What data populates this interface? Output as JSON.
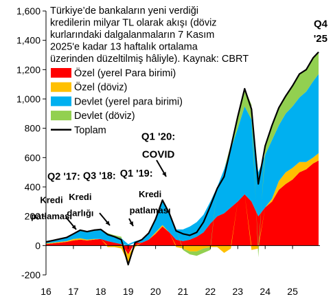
{
  "chart_data": {
    "type": "area",
    "title_lines": [
      "Türkiye’de bankaların yeni verdiği",
      "kredilerin milyar TL olarak akışı (döviz",
      "kurlarındaki dalgalanmaların 7 Kasım",
      "2025'e kadar 13 haftalık ortalama",
      "üzerinden düzeltilmiş hâliyle).  Kaynak: CBRT"
    ],
    "xlabel": "",
    "ylabel": "",
    "xlim": [
      16,
      26
    ],
    "ylim": [
      -200,
      1600
    ],
    "x_ticks": [
      16,
      17,
      18,
      19,
      20,
      21,
      22,
      23,
      24,
      25
    ],
    "x_tick_labels": [
      "16",
      "17",
      "18",
      "19",
      "20",
      "21",
      "22",
      "23",
      "24",
      "25"
    ],
    "y_ticks": [
      -200,
      0,
      200,
      400,
      600,
      800,
      1000,
      1200,
      1400,
      1600
    ],
    "y_tick_labels": [
      "-200",
      "0",
      "200",
      "400",
      "600",
      "800",
      "1,000",
      "1,200",
      "1,400",
      "1,600"
    ],
    "grid": false,
    "legend_position": "top-left",
    "x": [
      16.0,
      16.25,
      16.5,
      16.75,
      17.0,
      17.25,
      17.5,
      17.75,
      18.0,
      18.25,
      18.5,
      18.75,
      19.0,
      19.25,
      19.5,
      19.75,
      20.0,
      20.25,
      20.5,
      20.75,
      21.0,
      21.25,
      21.5,
      21.75,
      22.0,
      22.25,
      22.5,
      22.75,
      23.0,
      23.25,
      23.5,
      23.75,
      24.0,
      24.25,
      24.5,
      24.75,
      25.0,
      25.25,
      25.5,
      25.75,
      25.95
    ],
    "series": [
      {
        "name": "Özel (yerel Para birimi)",
        "color": "#ff0000",
        "values": [
          10,
          15,
          20,
          25,
          35,
          40,
          35,
          40,
          45,
          30,
          20,
          10,
          -60,
          20,
          20,
          40,
          80,
          130,
          90,
          40,
          30,
          40,
          60,
          90,
          150,
          200,
          220,
          260,
          300,
          350,
          300,
          200,
          260,
          300,
          380,
          420,
          450,
          500,
          520,
          560,
          580
        ]
      },
      {
        "name": "Özel (döviz)",
        "color": "#ffc000",
        "values": [
          5,
          5,
          5,
          5,
          10,
          10,
          5,
          5,
          0,
          -10,
          -10,
          -20,
          -60,
          -10,
          0,
          0,
          10,
          10,
          0,
          -10,
          -20,
          -40,
          -40,
          -20,
          -10,
          -10,
          -50,
          -20,
          0,
          0,
          -30,
          -20,
          0,
          20,
          60,
          80,
          80,
          70,
          50,
          40,
          50
        ]
      },
      {
        "name": "Devlet (yerel para birimi)",
        "color": "#00b0f0",
        "values": [
          10,
          15,
          20,
          25,
          35,
          50,
          50,
          55,
          60,
          50,
          40,
          40,
          10,
          10,
          20,
          40,
          80,
          160,
          120,
          70,
          80,
          90,
          100,
          120,
          150,
          200,
          300,
          400,
          500,
          600,
          560,
          300,
          360,
          400,
          380,
          400,
          420,
          440,
          480,
          520,
          540
        ]
      },
      {
        "name": "Devlet (döviz)",
        "color": "#92d050",
        "values": [
          0,
          0,
          0,
          0,
          0,
          5,
          5,
          5,
          5,
          5,
          10,
          10,
          -20,
          0,
          0,
          5,
          10,
          10,
          10,
          0,
          -10,
          -20,
          -30,
          -30,
          -20,
          0,
          0,
          30,
          80,
          120,
          100,
          -60,
          60,
          100,
          120,
          120,
          140,
          160,
          150,
          160,
          150
        ]
      },
      {
        "name": "Toplam",
        "color": "#000000",
        "values": [
          25,
          35,
          45,
          55,
          80,
          105,
          95,
          105,
          110,
          75,
          60,
          40,
          -130,
          20,
          40,
          85,
          180,
          310,
          220,
          100,
          80,
          70,
          90,
          160,
          270,
          390,
          470,
          670,
          880,
          1070,
          930,
          420,
          680,
          820,
          940,
          1020,
          1090,
          1170,
          1200,
          1280,
          1320
        ]
      }
    ],
    "annotations": [
      {
        "label": "Q4",
        "x": 25.75,
        "y": 1490
      },
      {
        "label": "'25",
        "x": 25.75,
        "y": 1390
      },
      {
        "label": "Q1 '20:",
        "x": 20.1,
        "y": 720
      },
      {
        "label": "COVID",
        "x": 20.1,
        "y": 600
      },
      {
        "label": "Q2 '17:",
        "x": 16.65,
        "y": 450
      },
      {
        "label": "Q3 '18:",
        "x": 17.95,
        "y": 455
      },
      {
        "label": "Q1 '19:",
        "x": 19.3,
        "y": 470
      },
      {
        "label": "Kredi",
        "x": 17.25,
        "y": 310
      },
      {
        "label": "darlığı",
        "x": 17.25,
        "y": 200
      },
      {
        "label": "Kredi",
        "x": 16.2,
        "y": 290
      },
      {
        "label": "patlaması",
        "x": 16.2,
        "y": 180
      },
      {
        "label": "Kredi",
        "x": 19.8,
        "y": 330
      },
      {
        "label": "patlaması",
        "x": 19.8,
        "y": 220
      }
    ]
  }
}
